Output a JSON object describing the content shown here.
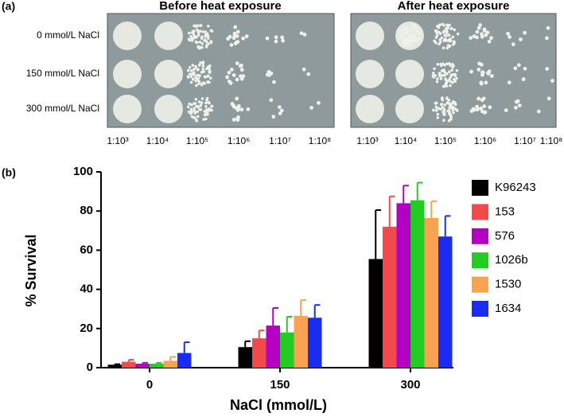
{
  "panel_a": {
    "label": "(a)",
    "titles": [
      "Before heat exposure",
      "After heat exposure"
    ],
    "rows": [
      "0 mmol/L NaCl",
      "150 mmol/L NaCl",
      "300 mmol/L NaCl"
    ],
    "dilutions": [
      "1:10³",
      "1:10⁴",
      "1:10⁵",
      "1:10⁶",
      "1:10⁷",
      "1:10⁸"
    ]
  },
  "panel_b": {
    "label": "(b)"
  },
  "chart_data": {
    "type": "bar",
    "ylabel": "% Survival",
    "xlabel": "NaCl (mmol/L)",
    "categories": [
      "0",
      "150",
      "300"
    ],
    "ylim": [
      0,
      100
    ],
    "yticks": [
      0,
      20,
      40,
      60,
      80,
      100
    ],
    "series": [
      {
        "name": "K96243",
        "color": "#000000",
        "values": [
          1.5,
          10.5,
          55.5
        ],
        "errors": [
          0.3,
          3,
          25
        ]
      },
      {
        "name": "153",
        "color": "#f24a4a",
        "values": [
          3,
          15,
          72
        ],
        "errors": [
          1,
          4,
          15.5
        ]
      },
      {
        "name": "576",
        "color": "#b300c4",
        "values": [
          2,
          21.5,
          84
        ],
        "errors": [
          0.5,
          9,
          9
        ]
      },
      {
        "name": "1026b",
        "color": "#22cc22",
        "values": [
          2,
          18,
          85.5
        ],
        "errors": [
          0.5,
          8,
          9
        ]
      },
      {
        "name": "1530",
        "color": "#f9a352",
        "values": [
          3.5,
          26.5,
          76.5
        ],
        "errors": [
          2,
          8,
          8.5
        ]
      },
      {
        "name": "1634",
        "color": "#1a2cf0",
        "values": [
          7.5,
          25.5,
          67
        ],
        "errors": [
          5.5,
          6.5,
          10.5
        ]
      }
    ]
  }
}
